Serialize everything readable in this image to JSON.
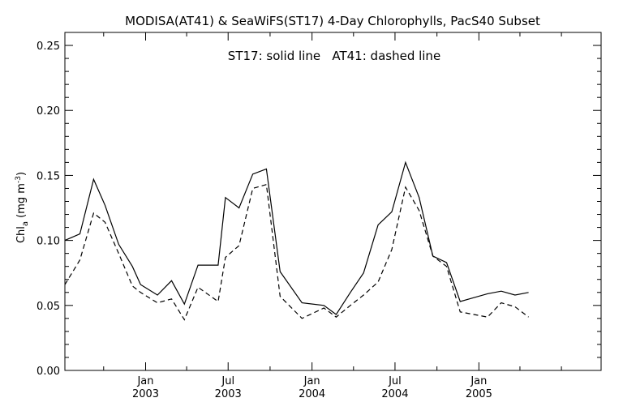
{
  "chart_data": {
    "type": "line",
    "title": "MODISA(AT41) & SeaWiFS(ST17) 4-Day Chlorophylls, PacS40 Subset",
    "legend_text": "ST17: solid line   AT41: dashed line",
    "legend_placement": "top-center",
    "ylabel": {
      "prefix": "Chl",
      "sub": "a",
      "units": " (mg m",
      "sup": "-3",
      "close": ")"
    },
    "ylim": [
      0.0,
      0.26
    ],
    "yticks": [
      {
        "v": 0.0,
        "label": "0.00"
      },
      {
        "v": 0.05,
        "label": "0.05"
      },
      {
        "v": 0.1,
        "label": "0.10"
      },
      {
        "v": 0.15,
        "label": "0.15"
      },
      {
        "v": 0.2,
        "label": "0.20"
      },
      {
        "v": 0.25,
        "label": "0.25"
      }
    ],
    "xlim": [
      "2002-07-08",
      "2005-09-26"
    ],
    "xticks_major": [
      {
        "date": "2003-01-01",
        "label1": "Jan",
        "label2": "2003"
      },
      {
        "date": "2003-07-01",
        "label1": "Jul",
        "label2": "2003"
      },
      {
        "date": "2004-01-01",
        "label1": "Jan",
        "label2": "2004"
      },
      {
        "date": "2004-07-01",
        "label1": "Jul",
        "label2": "2004"
      },
      {
        "date": "2005-01-01",
        "label1": "Jan",
        "label2": "2005"
      }
    ],
    "xticks_minor": [
      "2002-10-01",
      "2003-04-01",
      "2003-10-01",
      "2004-04-01",
      "2004-10-01",
      "2005-04-01",
      "2005-07-01"
    ],
    "grid": false,
    "series": [
      {
        "name": "ST17",
        "style": "solid",
        "color": "#000000",
        "points": [
          [
            "2002-07-08",
            0.1
          ],
          [
            "2002-08-10",
            0.105
          ],
          [
            "2002-09-09",
            0.147
          ],
          [
            "2002-10-04",
            0.127
          ],
          [
            "2002-11-03",
            0.097
          ],
          [
            "2002-12-03",
            0.08
          ],
          [
            "2002-12-21",
            0.066
          ],
          [
            "2003-01-27",
            0.058
          ],
          [
            "2003-02-27",
            0.069
          ],
          [
            "2003-03-27",
            0.051
          ],
          [
            "2003-04-26",
            0.081
          ],
          [
            "2003-06-09",
            0.081
          ],
          [
            "2003-06-25",
            0.133
          ],
          [
            "2003-07-25",
            0.125
          ],
          [
            "2003-08-24",
            0.151
          ],
          [
            "2003-09-23",
            0.155
          ],
          [
            "2003-10-23",
            0.076
          ],
          [
            "2003-12-10",
            0.052
          ],
          [
            "2004-01-27",
            0.05
          ],
          [
            "2004-02-23",
            0.043
          ],
          [
            "2004-03-25",
            0.06
          ],
          [
            "2004-04-23",
            0.075
          ],
          [
            "2004-05-25",
            0.112
          ],
          [
            "2004-06-24",
            0.122
          ],
          [
            "2004-07-24",
            0.16
          ],
          [
            "2004-08-23",
            0.133
          ],
          [
            "2004-09-22",
            0.088
          ],
          [
            "2004-10-22",
            0.083
          ],
          [
            "2004-11-21",
            0.053
          ],
          [
            "2004-12-21",
            0.056
          ],
          [
            "2005-01-20",
            0.059
          ],
          [
            "2005-02-19",
            0.061
          ],
          [
            "2005-03-21",
            0.058
          ],
          [
            "2005-04-20",
            0.06
          ]
        ]
      },
      {
        "name": "AT41",
        "style": "dashed",
        "color": "#000000",
        "points": [
          [
            "2002-07-08",
            0.066
          ],
          [
            "2002-08-10",
            0.085
          ],
          [
            "2002-09-09",
            0.121
          ],
          [
            "2002-10-04",
            0.114
          ],
          [
            "2002-11-03",
            0.09
          ],
          [
            "2002-12-03",
            0.065
          ],
          [
            "2002-12-21",
            0.06
          ],
          [
            "2003-01-27",
            0.052
          ],
          [
            "2003-02-27",
            0.055
          ],
          [
            "2003-03-27",
            0.039
          ],
          [
            "2003-04-26",
            0.064
          ],
          [
            "2003-06-09",
            0.053
          ],
          [
            "2003-06-25",
            0.087
          ],
          [
            "2003-07-25",
            0.096
          ],
          [
            "2003-08-24",
            0.14
          ],
          [
            "2003-09-23",
            0.143
          ],
          [
            "2003-10-23",
            0.057
          ],
          [
            "2003-12-10",
            0.04
          ],
          [
            "2004-01-27",
            0.048
          ],
          [
            "2004-02-23",
            0.041
          ],
          [
            "2004-03-25",
            0.05
          ],
          [
            "2004-04-23",
            0.058
          ],
          [
            "2004-05-25",
            0.068
          ],
          [
            "2004-06-24",
            0.093
          ],
          [
            "2004-07-24",
            0.141
          ],
          [
            "2004-08-23",
            0.123
          ],
          [
            "2004-09-22",
            0.088
          ],
          [
            "2004-10-22",
            0.08
          ],
          [
            "2004-11-21",
            0.045
          ],
          [
            "2004-12-21",
            0.043
          ],
          [
            "2005-01-20",
            0.041
          ],
          [
            "2005-02-19",
            0.052
          ],
          [
            "2005-03-21",
            0.049
          ],
          [
            "2005-04-20",
            0.041
          ]
        ]
      }
    ]
  }
}
